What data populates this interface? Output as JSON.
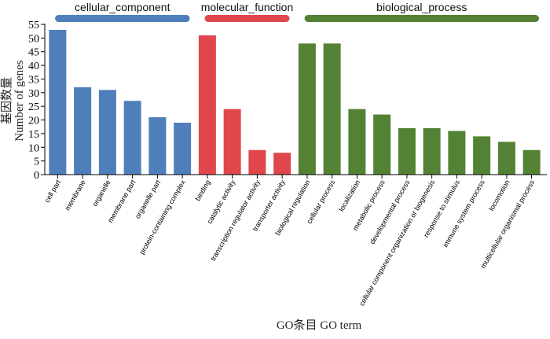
{
  "chart_data": {
    "type": "bar",
    "xlabel": "GO条目 GO term",
    "ylabel_cn": "基因数量",
    "ylabel_en": "Number of genes",
    "ylim": [
      0,
      55
    ],
    "yticks": [
      0,
      5,
      10,
      15,
      20,
      25,
      30,
      35,
      40,
      45,
      50,
      55
    ],
    "groups": [
      {
        "name": "cellular_component",
        "color": "#4f7fba",
        "categories": [
          "cell part",
          "membrane",
          "organelle",
          "membrane part",
          "organelle part",
          "protein-containing complex"
        ],
        "values": [
          53,
          32,
          31,
          27,
          21,
          19
        ]
      },
      {
        "name": "molecular_function",
        "color": "#e0474c",
        "categories": [
          "binding",
          "catalytic activity",
          "transcription regulator activity",
          "transporter activity"
        ],
        "values": [
          51,
          24,
          9,
          8
        ]
      },
      {
        "name": "biological_process",
        "color": "#548235",
        "categories": [
          "biological regulation",
          "cellular process",
          "localization",
          "metabolic process",
          "developmental process",
          "cellular component organization or biogenesis",
          "response to stimulus",
          "immune system process",
          "locomotion",
          "multicellular organismal process"
        ],
        "values": [
          48,
          48,
          24,
          22,
          17,
          17,
          16,
          14,
          12,
          9
        ]
      }
    ]
  }
}
